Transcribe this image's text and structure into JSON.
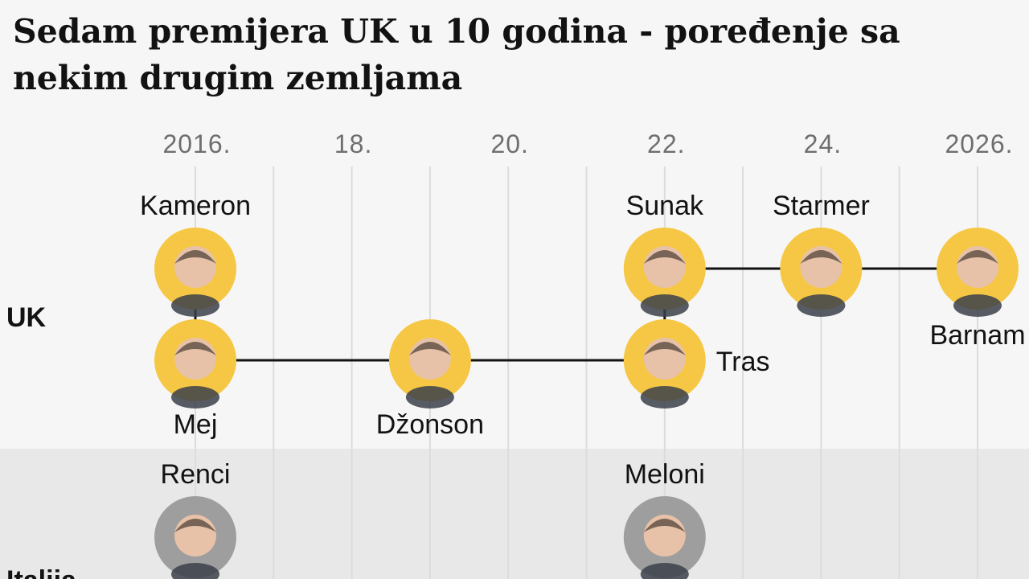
{
  "title": "Sedam premijera UK u 10 godina - poređenje sa nekim drugim zemljama",
  "colors": {
    "background": "#f6f6f6",
    "band_alt": "#e8e8e8",
    "gridline": "#dcdcdc",
    "accent_yellow": "#f6c744",
    "neutral_circle": "#9e9e9e",
    "connector": "#121212",
    "text": "#121212",
    "tick_text": "#6e6e6e"
  },
  "chart_data": {
    "type": "timeline",
    "title": "Sedam premijera UK u 10 godina - poređenje sa nekim drugim zemljama",
    "x_axis": {
      "unit": "year",
      "range": [
        2015.5,
        2026.5
      ],
      "ticks": [
        {
          "value": 2016,
          "label": "2016."
        },
        {
          "value": 2018,
          "label": "18."
        },
        {
          "value": 2020,
          "label": "20."
        },
        {
          "value": 2022,
          "label": "22."
        },
        {
          "value": 2024,
          "label": "24."
        },
        {
          "value": 2026,
          "label": "2026."
        }
      ],
      "grid": true
    },
    "rows": [
      {
        "label": "UK",
        "leaders": [
          {
            "name": "Kameron",
            "start": 2016.0,
            "track": "upper",
            "label_side": "above",
            "photo_color": "#f6c744"
          },
          {
            "name": "Mej",
            "start": 2016.0,
            "track": "lower",
            "label_side": "below",
            "photo_color": "#f6c744"
          },
          {
            "name": "Džonson",
            "start": 2019.0,
            "track": "lower",
            "label_side": "below",
            "photo_color": "#f6c744"
          },
          {
            "name": "Tras",
            "start": 2022.0,
            "track": "lower",
            "label_side": "right",
            "photo_color": "#f6c744"
          },
          {
            "name": "Sunak",
            "start": 2022.0,
            "track": "upper",
            "label_side": "above",
            "photo_color": "#f6c744"
          },
          {
            "name": "Starmer",
            "start": 2024.0,
            "track": "upper",
            "label_side": "above",
            "photo_color": "#f6c744"
          },
          {
            "name": "Barnam",
            "start": 2026.0,
            "track": "upper",
            "label_side": "below",
            "photo_color": "#f6c744"
          }
        ],
        "connectors": [
          {
            "from": 2016.0,
            "to": 2022.0,
            "track": "lower"
          },
          {
            "from": 2022.0,
            "to": 2026.0,
            "track": "upper"
          },
          {
            "at": 2016.0,
            "vertical": true
          },
          {
            "at": 2022.0,
            "vertical": true
          }
        ]
      },
      {
        "label": "Italija",
        "leaders": [
          {
            "name": "Renci",
            "start": 2016.0,
            "track": "upper",
            "label_side": "above",
            "photo_color": "#9e9e9e"
          },
          {
            "name": "Meloni",
            "start": 2022.0,
            "track": "upper",
            "label_side": "above",
            "photo_color": "#9e9e9e"
          }
        ],
        "connectors": []
      }
    ]
  }
}
